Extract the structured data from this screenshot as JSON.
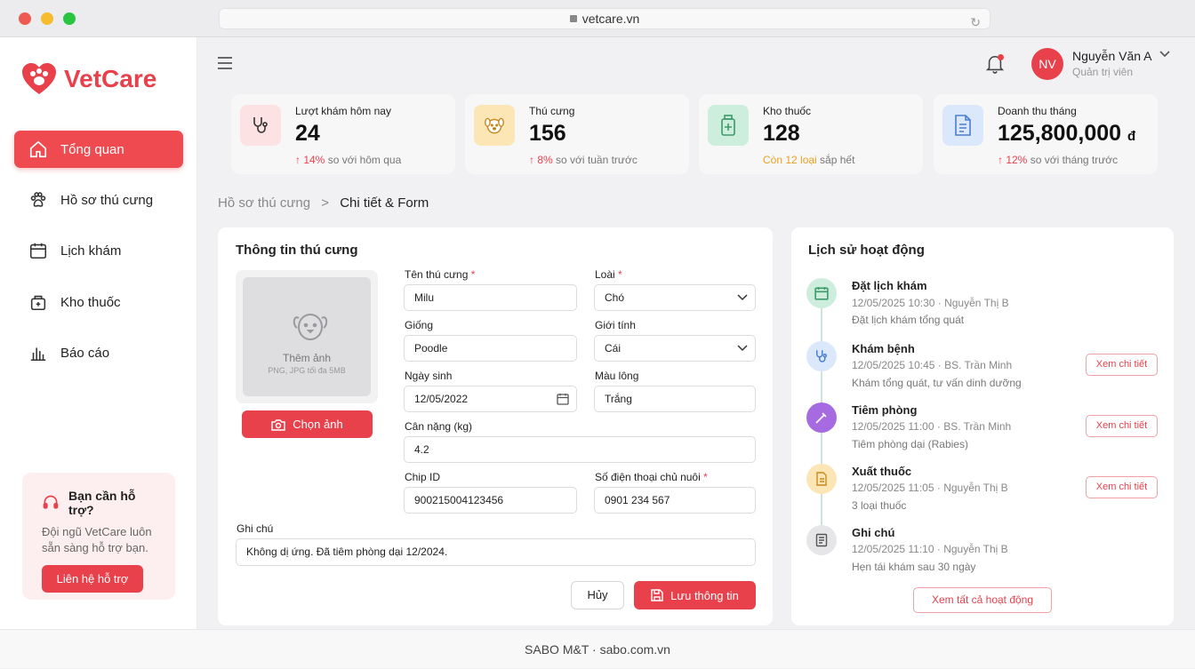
{
  "browser": {
    "url": "vetcare.vn"
  },
  "brand": {
    "name": "VetCare",
    "accent": "#e8414c"
  },
  "nav": [
    {
      "label": "Tổng quan",
      "icon": "home-icon",
      "active": true
    },
    {
      "label": "Hồ sơ thú cưng",
      "icon": "paw-icon"
    },
    {
      "label": "Lịch khám",
      "icon": "calendar-icon"
    },
    {
      "label": "Kho thuốc",
      "icon": "medicine-box-icon"
    },
    {
      "label": "Báo cáo",
      "icon": "bar-chart-icon"
    }
  ],
  "support": {
    "title": "Bạn cần hỗ trợ?",
    "text": "Đội ngũ VetCare luôn sẵn sàng hỗ trợ bạn.",
    "button": "Liên hệ hỗ trợ"
  },
  "user": {
    "initials": "NV",
    "name": "Nguyễn Văn A",
    "role": "Quản trị viên"
  },
  "stats": [
    {
      "label": "Lượt khám hôm nay",
      "value": "24",
      "delta": "↑ 14%",
      "note": " so với hôm qua",
      "icon": "stethoscope-icon",
      "color": "#fde2e3"
    },
    {
      "label": "Thú cưng",
      "value": "156",
      "delta": "↑ 8%",
      "note": " so với tuần trước",
      "icon": "dog-face-icon",
      "color": "#fde6b5"
    },
    {
      "label": "Kho thuốc",
      "value": "128",
      "delta": "Còn 12 loại",
      "note": " sắp hết",
      "icon": "medicine-bottle-icon",
      "color": "#cdeedd"
    },
    {
      "label": "Doanh thu tháng",
      "value": "125,800,000",
      "unit": "đ",
      "delta": "↑ 12%",
      "note": " so với tháng trước",
      "icon": "invoice-icon",
      "color": "#dbe8fb"
    }
  ],
  "breadcrumb": {
    "parent": "Hồ sơ thú cưng",
    "sep": ">",
    "current": "Chi tiết & Form"
  },
  "form": {
    "title": "Thông tin thú cưng",
    "photo": {
      "label": "Thêm ảnh",
      "hint": "PNG, JPG tối đa 5MB",
      "button": "Chọn ảnh"
    },
    "name_label": "Tên thú cưng",
    "name_value": "Milu",
    "species_label": "Loài",
    "species_value": "Chó",
    "breed_label": "Giống",
    "breed_value": "Poodle",
    "sex_label": "Giới tính",
    "sex_value": "Cái",
    "dob_label": "Ngày sinh",
    "dob_value": "12/05/2022",
    "color_label": "Màu lông",
    "color_value": "Trắng",
    "weight_label": "Cân nặng (kg)",
    "weight_value": "4.2",
    "chip_label": "Chip ID",
    "chip_value": "900215004123456",
    "phone_label": "Số điện thoại chủ nuôi",
    "phone_value": "0901 234 567",
    "note_label": "Ghi chú",
    "note_value": "Không dị ứng. Đã tiêm phòng dại 12/2024.",
    "required_mark": "*",
    "cancel": "Hủy",
    "save": "Lưu thông tin"
  },
  "history": {
    "title": "Lịch sử hoạt động",
    "items": [
      {
        "title": "Đặt lịch khám",
        "meta": "12/05/2025 10:30 · Nguyễn Thị B",
        "desc": "Đặt lịch khám tổng quát",
        "icon": "calendar-icon",
        "color": "#cdeedd"
      },
      {
        "title": "Khám bệnh",
        "meta": "12/05/2025 10:45 · BS. Trần Minh",
        "desc": "Khám tổng quát, tư vấn dinh dưỡng",
        "icon": "stethoscope-icon",
        "color": "#dbe8fb",
        "action": "Xem chi tiết"
      },
      {
        "title": "Tiêm phòng",
        "meta": "12/05/2025 11:00 · BS. Trần Minh",
        "desc": "Tiêm phòng dại (Rabies)",
        "icon": "syringe-icon",
        "color": "#a66be0",
        "action": "Xem chi tiết"
      },
      {
        "title": "Xuất thuốc",
        "meta": "12/05/2025 11:05 · Nguyễn Thị B",
        "desc": "3 loại thuốc",
        "icon": "document-icon",
        "color": "#fde6b5",
        "action": "Xem chi tiết"
      },
      {
        "title": "Ghi chú",
        "meta": "12/05/2025 11:10 · Nguyễn Thị B",
        "desc": "Hẹn tái khám sau 30 ngày",
        "icon": "note-icon",
        "color": "#e6e6e8"
      }
    ],
    "view_all": "Xem tất cả hoạt động"
  },
  "footer": "SABO M&T · sabo.com.vn"
}
